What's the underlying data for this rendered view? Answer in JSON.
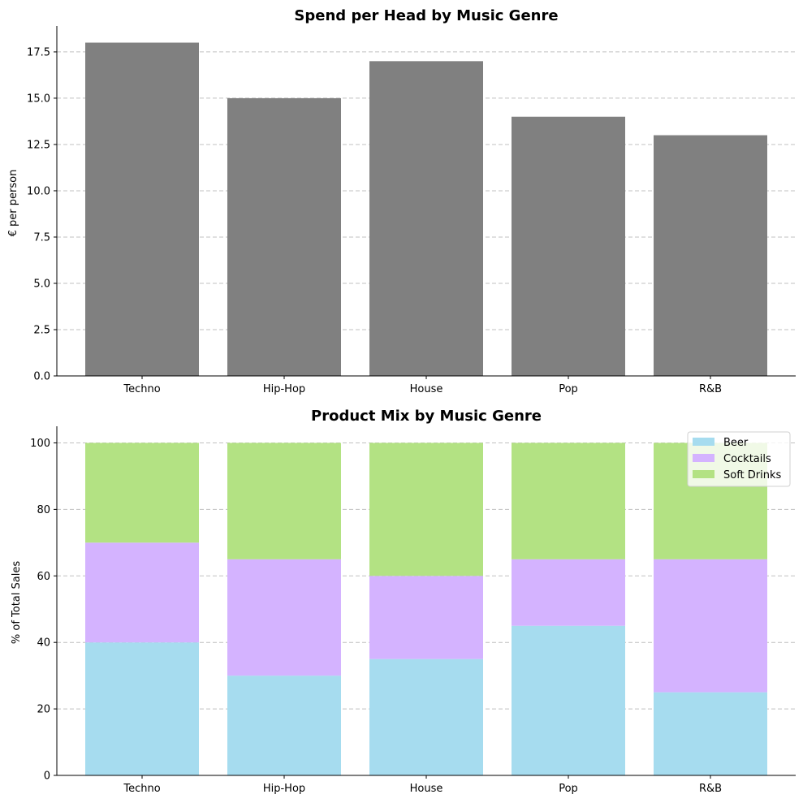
{
  "chart_data": [
    {
      "type": "bar",
      "title": "Spend per Head by Music Genre",
      "xlabel": "",
      "ylabel": "€ per person",
      "categories": [
        "Techno",
        "Hip-Hop",
        "House",
        "Pop",
        "R&B"
      ],
      "values": [
        18,
        15,
        17,
        14,
        13
      ],
      "ylim": [
        0,
        18.9
      ],
      "yticks": [
        0,
        2.5,
        5,
        7.5,
        10,
        12.5,
        15,
        17.5
      ],
      "ytick_labels": [
        "0.0",
        "2.5",
        "5.0",
        "7.5",
        "10.0",
        "12.5",
        "15.0",
        "17.5"
      ],
      "color": "#808080",
      "grid": "horizontal dashed"
    },
    {
      "type": "bar",
      "stacked": true,
      "title": "Product Mix by Music Genre",
      "xlabel": "",
      "ylabel": "% of Total Sales",
      "categories": [
        "Techno",
        "Hip-Hop",
        "House",
        "Pop",
        "R&B"
      ],
      "series": [
        {
          "name": "Beer",
          "values": [
            40,
            30,
            35,
            45,
            25
          ],
          "color": "#a6dcef"
        },
        {
          "name": "Cocktails",
          "values": [
            30,
            35,
            25,
            20,
            40
          ],
          "color": "#d4b3ff"
        },
        {
          "name": "Soft Drinks",
          "values": [
            30,
            35,
            40,
            35,
            35
          ],
          "color": "#b3e283"
        }
      ],
      "ylim": [
        0,
        105
      ],
      "yticks": [
        0,
        20,
        40,
        60,
        80,
        100
      ],
      "ytick_labels": [
        "0",
        "20",
        "40",
        "60",
        "80",
        "100"
      ],
      "legend": "top-right",
      "grid": "horizontal dashed"
    }
  ]
}
